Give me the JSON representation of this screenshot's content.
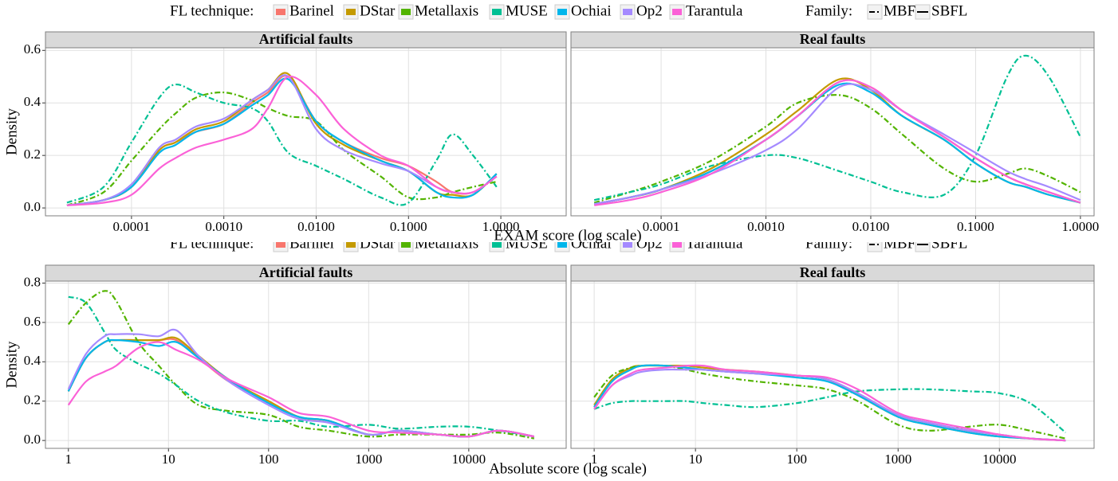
{
  "chart_data": [
    {
      "type": "line",
      "log_x": true,
      "grid": true,
      "legend_title": "FL technique:",
      "family_title": "Family:",
      "families": [
        {
          "name": "MBFL",
          "dash": "7,3,2,3"
        },
        {
          "name": "SBFL"
        }
      ],
      "xlabel": "EXAM score (log scale)",
      "ylabel": "Density",
      "ylim": [
        -0.03,
        0.61
      ],
      "yticks": [
        {
          "value": 0,
          "label": "0.0"
        },
        0.2,
        0.4,
        0.6
      ],
      "panels": [
        {
          "title": "Artificial faults",
          "xlim": [
            1.17e-05,
            5.1
          ],
          "xticks": [
            {
              "value": 0.0001,
              "label": "0.0001"
            },
            {
              "value": 0.001,
              "label": "0.0010"
            },
            {
              "value": 0.01,
              "label": "0.0100"
            },
            {
              "value": 0.1,
              "label": "0.1000"
            },
            {
              "value": 1,
              "label": "1.0000"
            }
          ],
          "x": [
            2e-05,
            5e-05,
            0.0001,
            0.0002,
            0.0003,
            0.0005,
            0.001,
            0.002,
            0.003,
            0.005,
            0.01,
            0.02,
            0.05,
            0.1,
            0.2,
            0.3,
            0.5,
            0.9
          ],
          "series": [
            {
              "name": "Barinel",
              "color": "#F8766D",
              "family": "SBFL",
              "values": [
                0.01,
                0.03,
                0.08,
                0.22,
                0.25,
                0.29,
                0.32,
                0.4,
                0.44,
                0.5,
                0.33,
                0.25,
                0.19,
                0.16,
                0.1,
                0.06,
                0.06,
                0.12
              ]
            },
            {
              "name": "DStar",
              "color": "#C49A00",
              "family": "SBFL",
              "values": [
                0.01,
                0.03,
                0.08,
                0.22,
                0.25,
                0.3,
                0.33,
                0.41,
                0.45,
                0.51,
                0.32,
                0.24,
                0.18,
                0.14,
                0.06,
                0.05,
                0.05,
                0.13
              ]
            },
            {
              "name": "Metallaxis",
              "color": "#53B400",
              "family": "MBFL",
              "values": [
                0.01,
                0.06,
                0.18,
                0.3,
                0.36,
                0.42,
                0.44,
                0.41,
                0.38,
                0.35,
                0.33,
                0.22,
                0.12,
                0.04,
                0.04,
                0.06,
                0.08,
                0.1
              ]
            },
            {
              "name": "MUSE",
              "color": "#00C094",
              "family": "MBFL",
              "values": [
                0.02,
                0.08,
                0.25,
                0.42,
                0.47,
                0.44,
                0.4,
                0.38,
                0.33,
                0.21,
                0.16,
                0.11,
                0.04,
                0.02,
                0.18,
                0.28,
                0.2,
                0.08
              ]
            },
            {
              "name": "Ochiai",
              "color": "#00B6EB",
              "family": "SBFL",
              "values": [
                0.01,
                0.03,
                0.08,
                0.21,
                0.24,
                0.29,
                0.32,
                0.39,
                0.43,
                0.49,
                0.33,
                0.25,
                0.18,
                0.14,
                0.06,
                0.04,
                0.05,
                0.13
              ]
            },
            {
              "name": "Op2",
              "color": "#A58AFF",
              "family": "SBFL",
              "values": [
                0.01,
                0.03,
                0.09,
                0.23,
                0.26,
                0.31,
                0.34,
                0.41,
                0.45,
                0.5,
                0.3,
                0.22,
                0.17,
                0.14,
                0.08,
                0.06,
                0.06,
                0.12
              ]
            },
            {
              "name": "Tarantula",
              "color": "#FB61D7",
              "family": "SBFL",
              "values": [
                0.01,
                0.02,
                0.05,
                0.15,
                0.19,
                0.23,
                0.26,
                0.3,
                0.38,
                0.5,
                0.43,
                0.3,
                0.2,
                0.16,
                0.08,
                0.06,
                0.06,
                0.12
              ]
            }
          ]
        },
        {
          "title": "Real faults",
          "xlim": [
            1.38e-05,
            1.35
          ],
          "xticks": [
            {
              "value": 0.0001,
              "label": "0.0001"
            },
            {
              "value": 0.001,
              "label": "0.0010"
            },
            {
              "value": 0.01,
              "label": "0.0100"
            },
            {
              "value": 0.1,
              "label": "0.1000"
            },
            {
              "value": 1,
              "label": "1.0000"
            }
          ],
          "x": [
            2.3e-05,
            5e-05,
            0.0001,
            0.0003,
            0.001,
            0.002,
            0.005,
            0.01,
            0.02,
            0.05,
            0.1,
            0.2,
            0.3,
            0.5,
            1
          ],
          "series": [
            {
              "name": "Barinel",
              "color": "#F8766D",
              "family": "SBFL",
              "values": [
                0.015,
                0.04,
                0.07,
                0.14,
                0.26,
                0.35,
                0.48,
                0.46,
                0.37,
                0.27,
                0.19,
                0.12,
                0.09,
                0.06,
                0.02
              ]
            },
            {
              "name": "DStar",
              "color": "#C49A00",
              "family": "SBFL",
              "values": [
                0.015,
                0.04,
                0.07,
                0.15,
                0.28,
                0.37,
                0.49,
                0.45,
                0.35,
                0.26,
                0.17,
                0.1,
                0.08,
                0.05,
                0.02
              ]
            },
            {
              "name": "Metallaxis",
              "color": "#53B400",
              "family": "MBFL",
              "values": [
                0.02,
                0.06,
                0.1,
                0.18,
                0.31,
                0.4,
                0.43,
                0.38,
                0.28,
                0.15,
                0.1,
                0.13,
                0.15,
                0.12,
                0.06
              ]
            },
            {
              "name": "MUSE",
              "color": "#00C094",
              "family": "MBFL",
              "values": [
                0.03,
                0.06,
                0.09,
                0.16,
                0.2,
                0.19,
                0.14,
                0.1,
                0.06,
                0.05,
                0.2,
                0.5,
                0.58,
                0.5,
                0.27
              ]
            },
            {
              "name": "Ochiai",
              "color": "#00B6EB",
              "family": "SBFL",
              "values": [
                0.015,
                0.04,
                0.07,
                0.14,
                0.26,
                0.35,
                0.47,
                0.44,
                0.35,
                0.26,
                0.17,
                0.1,
                0.08,
                0.05,
                0.02
              ]
            },
            {
              "name": "Op2",
              "color": "#A58AFF",
              "family": "SBFL",
              "values": [
                0.015,
                0.04,
                0.07,
                0.13,
                0.22,
                0.3,
                0.46,
                0.45,
                0.37,
                0.28,
                0.21,
                0.14,
                0.11,
                0.08,
                0.03
              ]
            },
            {
              "name": "Tarantula",
              "color": "#FB61D7",
              "family": "SBFL",
              "values": [
                0.01,
                0.03,
                0.06,
                0.13,
                0.26,
                0.35,
                0.48,
                0.46,
                0.37,
                0.27,
                0.19,
                0.12,
                0.09,
                0.06,
                0.02
              ]
            }
          ]
        }
      ]
    },
    {
      "type": "line",
      "log_x": true,
      "grid": true,
      "legend_title": "FL technique:",
      "family_title": "Family:",
      "families": [
        {
          "name": "MBFL",
          "dash": "7,3,2,3"
        },
        {
          "name": "SBFL"
        }
      ],
      "xlabel": "Absolute score (log scale)",
      "ylabel": "Density",
      "ylim": [
        -0.04,
        0.81
      ],
      "yticks": [
        {
          "value": 0,
          "label": "0.0"
        },
        0.2,
        0.4,
        0.6,
        0.8
      ],
      "panels": [
        {
          "title": "Artificial faults",
          "xlim": [
            0.59,
            94000
          ],
          "xticks": [
            1,
            10,
            100,
            1000,
            10000
          ],
          "x": [
            1,
            1.5,
            2.3,
            3,
            5,
            8,
            12,
            20,
            40,
            100,
            200,
            400,
            1000,
            2000,
            5000,
            10000,
            20000,
            45000
          ],
          "series": [
            {
              "name": "Barinel",
              "color": "#F8766D",
              "family": "SBFL",
              "values": [
                0.25,
                0.42,
                0.5,
                0.51,
                0.51,
                0.51,
                0.51,
                0.42,
                0.3,
                0.2,
                0.12,
                0.1,
                0.03,
                0.05,
                0.03,
                0.02,
                0.05,
                0.02
              ]
            },
            {
              "name": "DStar",
              "color": "#C49A00",
              "family": "SBFL",
              "values": [
                0.25,
                0.42,
                0.5,
                0.51,
                0.51,
                0.51,
                0.52,
                0.43,
                0.31,
                0.2,
                0.12,
                0.1,
                0.03,
                0.05,
                0.03,
                0.02,
                0.05,
                0.02
              ]
            },
            {
              "name": "Metallaxis",
              "color": "#53B400",
              "family": "MBFL",
              "values": [
                0.59,
                0.7,
                0.76,
                0.71,
                0.5,
                0.38,
                0.28,
                0.18,
                0.15,
                0.13,
                0.07,
                0.05,
                0.02,
                0.03,
                0.03,
                0.03,
                0.04,
                0.01
              ]
            },
            {
              "name": "MUSE",
              "color": "#00C094",
              "family": "MBFL",
              "values": [
                0.73,
                0.7,
                0.55,
                0.46,
                0.39,
                0.34,
                0.28,
                0.2,
                0.14,
                0.1,
                0.1,
                0.07,
                0.08,
                0.06,
                0.07,
                0.07,
                0.05,
                0.02
              ]
            },
            {
              "name": "Ochiai",
              "color": "#00B6EB",
              "family": "SBFL",
              "values": [
                0.25,
                0.42,
                0.5,
                0.51,
                0.5,
                0.48,
                0.5,
                0.42,
                0.31,
                0.19,
                0.12,
                0.1,
                0.03,
                0.05,
                0.03,
                0.02,
                0.05,
                0.02
              ]
            },
            {
              "name": "Op2",
              "color": "#A58AFF",
              "family": "SBFL",
              "values": [
                0.26,
                0.44,
                0.53,
                0.54,
                0.54,
                0.53,
                0.56,
                0.43,
                0.3,
                0.18,
                0.11,
                0.09,
                0.03,
                0.05,
                0.03,
                0.02,
                0.05,
                0.02
              ]
            },
            {
              "name": "Tarantula",
              "color": "#FB61D7",
              "family": "SBFL",
              "values": [
                0.18,
                0.3,
                0.35,
                0.38,
                0.47,
                0.5,
                0.46,
                0.41,
                0.31,
                0.22,
                0.14,
                0.12,
                0.05,
                0.04,
                0.03,
                0.02,
                0.05,
                0.02
              ]
            }
          ]
        },
        {
          "title": "Real faults",
          "xlim": [
            0.59,
            86000
          ],
          "xticks": [
            1,
            10,
            100,
            1000,
            10000
          ],
          "x": [
            1,
            1.5,
            2.3,
            3,
            5,
            8,
            12,
            20,
            40,
            100,
            200,
            400,
            1000,
            2000,
            5000,
            10000,
            20000,
            45000
          ],
          "series": [
            {
              "name": "Barinel",
              "color": "#F8766D",
              "family": "SBFL",
              "values": [
                0.17,
                0.3,
                0.36,
                0.38,
                0.38,
                0.37,
                0.36,
                0.35,
                0.34,
                0.33,
                0.31,
                0.24,
                0.13,
                0.09,
                0.05,
                0.03,
                0.01,
                0
              ]
            },
            {
              "name": "DStar",
              "color": "#C49A00",
              "family": "SBFL",
              "values": [
                0.18,
                0.31,
                0.37,
                0.38,
                0.38,
                0.38,
                0.37,
                0.36,
                0.35,
                0.33,
                0.31,
                0.23,
                0.12,
                0.08,
                0.04,
                0.02,
                0.01,
                0
              ]
            },
            {
              "name": "Metallaxis",
              "color": "#53B400",
              "family": "MBFL",
              "values": [
                0.22,
                0.33,
                0.37,
                0.38,
                0.38,
                0.36,
                0.34,
                0.32,
                0.3,
                0.28,
                0.26,
                0.2,
                0.08,
                0.05,
                0.07,
                0.08,
                0.05,
                0.01
              ]
            },
            {
              "name": "MUSE",
              "color": "#00C094",
              "family": "MBFL",
              "values": [
                0.16,
                0.19,
                0.2,
                0.2,
                0.2,
                0.2,
                0.19,
                0.18,
                0.17,
                0.19,
                0.22,
                0.25,
                0.26,
                0.26,
                0.25,
                0.24,
                0.19,
                0.04
              ]
            },
            {
              "name": "Ochiai",
              "color": "#00B6EB",
              "family": "SBFL",
              "values": [
                0.17,
                0.3,
                0.36,
                0.38,
                0.38,
                0.37,
                0.36,
                0.35,
                0.34,
                0.32,
                0.3,
                0.23,
                0.12,
                0.08,
                0.04,
                0.02,
                0.01,
                0
              ]
            },
            {
              "name": "Op2",
              "color": "#A58AFF",
              "family": "SBFL",
              "values": [
                0.16,
                0.28,
                0.33,
                0.35,
                0.36,
                0.36,
                0.36,
                0.35,
                0.34,
                0.33,
                0.31,
                0.24,
                0.13,
                0.09,
                0.05,
                0.03,
                0.01,
                0
              ]
            },
            {
              "name": "Tarantula",
              "color": "#FB61D7",
              "family": "SBFL",
              "values": [
                0.16,
                0.28,
                0.34,
                0.36,
                0.37,
                0.38,
                0.38,
                0.36,
                0.35,
                0.33,
                0.32,
                0.26,
                0.14,
                0.1,
                0.06,
                0.03,
                0.01,
                0
              ]
            }
          ]
        }
      ]
    }
  ]
}
